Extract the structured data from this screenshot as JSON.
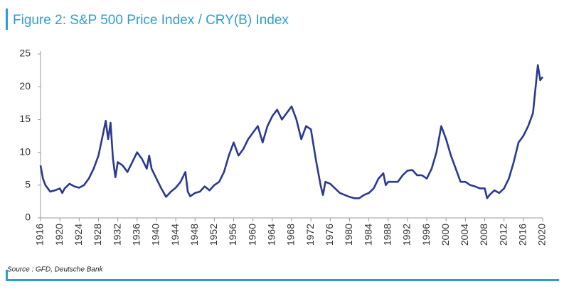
{
  "chart_data": {
    "type": "line",
    "title": "Figure 2: S&P 500 Price Index / CRY(B) Index",
    "source": "Source : GFD, Deutsche Bank",
    "x": [
      1916,
      1916.5,
      1917,
      1918,
      1919,
      1920,
      1920.5,
      1921,
      1922,
      1923,
      1924,
      1925,
      1926,
      1927,
      1928,
      1929,
      1929.5,
      1930,
      1930.5,
      1931,
      1931.5,
      1932,
      1933,
      1934,
      1935,
      1936,
      1937,
      1938,
      1938.5,
      1939,
      1940,
      1941,
      1942,
      1943,
      1944,
      1945,
      1946,
      1946.5,
      1947,
      1948,
      1949,
      1950,
      1951,
      1952,
      1953,
      1954,
      1955,
      1956,
      1957,
      1958,
      1959,
      1960,
      1961,
      1962,
      1963,
      1964,
      1965,
      1966,
      1967,
      1968,
      1969,
      1970,
      1971,
      1972,
      1973,
      1974,
      1974.5,
      1975,
      1976,
      1977,
      1978,
      1979,
      1980,
      1981,
      1982,
      1983,
      1984,
      1985,
      1986,
      1987,
      1987.5,
      1988,
      1989,
      1990,
      1991,
      1992,
      1993,
      1994,
      1995,
      1996,
      1997,
      1998,
      1999,
      2000,
      2001,
      2002,
      2003,
      2004,
      2005,
      2006,
      2007,
      2008,
      2008.5,
      2009,
      2010,
      2011,
      2012,
      2013,
      2014,
      2015,
      2016,
      2017,
      2018,
      2019,
      2019.5,
      2020
    ],
    "series": [
      {
        "name": "S&P 500 Price Index / CRY(B) Index",
        "color": "#2b3990",
        "values": [
          8,
          6,
          5,
          4,
          4.2,
          4.5,
          3.8,
          4.5,
          5.2,
          4.8,
          4.6,
          5,
          6,
          7.5,
          9.5,
          13,
          14.8,
          12,
          14.5,
          9,
          6.2,
          8.5,
          8,
          7,
          8.5,
          10,
          9,
          7.5,
          9.5,
          7.5,
          6,
          4.5,
          3.2,
          4,
          4.6,
          5.5,
          7,
          4,
          3.3,
          3.8,
          4,
          4.8,
          4.2,
          5,
          5.5,
          7,
          9.5,
          11.5,
          9.5,
          10.5,
          12,
          13,
          14,
          11.5,
          14,
          15.5,
          16.5,
          15,
          16,
          17,
          15,
          12,
          14,
          13.5,
          9,
          5,
          3.5,
          5.5,
          5.2,
          4.5,
          3.8,
          3.5,
          3.2,
          3,
          3,
          3.5,
          3.8,
          4.5,
          6,
          6.8,
          5,
          5.5,
          5.5,
          5.5,
          6.5,
          7.2,
          7.3,
          6.5,
          6.5,
          6,
          7.5,
          10,
          14,
          12,
          9.5,
          7.5,
          5.5,
          5.5,
          5,
          4.8,
          4.5,
          4.5,
          3,
          3.5,
          4.2,
          3.8,
          4.5,
          6,
          8.5,
          11.5,
          12.5,
          14,
          16,
          23.3,
          21,
          21.5
        ]
      }
    ],
    "xlim": [
      1916,
      2020
    ],
    "xticks": [
      1916,
      1920,
      1924,
      1928,
      1932,
      1936,
      1940,
      1944,
      1948,
      1952,
      1956,
      1960,
      1964,
      1968,
      1972,
      1976,
      1980,
      1984,
      1988,
      1992,
      1996,
      2000,
      2004,
      2008,
      2012,
      2016,
      2020
    ],
    "ylim": [
      0,
      25
    ],
    "yticks": [
      0,
      5,
      10,
      15,
      20,
      25
    ]
  }
}
